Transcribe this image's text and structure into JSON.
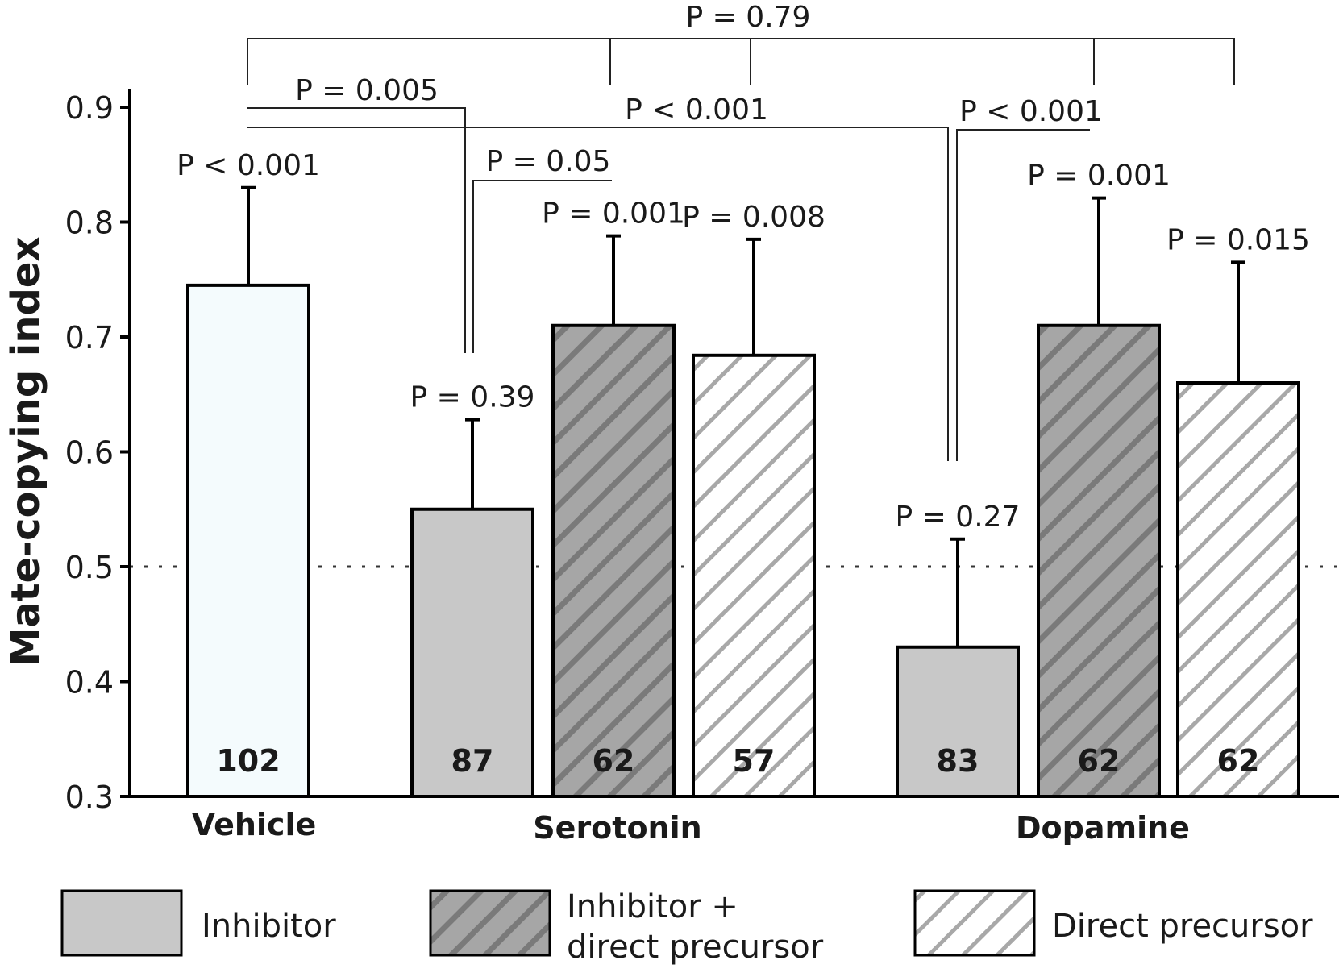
{
  "chart_data": {
    "type": "bar",
    "ylabel": "Mate-copying index",
    "ylim": [
      0.3,
      0.9
    ],
    "yticks": [
      "0.3",
      "0.4",
      "0.5",
      "0.6",
      "0.7",
      "0.8",
      "0.9"
    ],
    "reference_line": 0.5,
    "groups": [
      "Vehicle",
      "Serotonin",
      "Dopamine"
    ],
    "bars": [
      {
        "group": "Vehicle",
        "treatment": "Vehicle",
        "value": 0.745,
        "error": 0.085,
        "n": "102",
        "p": "P < 0.001",
        "color": "#f4fbfd",
        "pattern": "none"
      },
      {
        "group": "Serotonin",
        "treatment": "Inhibitor",
        "value": 0.55,
        "error": 0.078,
        "n": "87",
        "p": "P = 0.39",
        "color": "#c8c8c8",
        "pattern": "none"
      },
      {
        "group": "Serotonin",
        "treatment": "Inhibitor + direct precursor",
        "value": 0.71,
        "error": 0.078,
        "n": "62",
        "p": "P = 0.001",
        "color": "#a6a6a6",
        "pattern": "dark-hatch"
      },
      {
        "group": "Serotonin",
        "treatment": "Direct precursor",
        "value": 0.684,
        "error": 0.101,
        "n": "57",
        "p": "P = 0.008",
        "color": "#ffffff",
        "pattern": "light-hatch"
      },
      {
        "group": "Dopamine",
        "treatment": "Inhibitor",
        "value": 0.43,
        "error": 0.094,
        "n": "83",
        "p": "P = 0.27",
        "color": "#c8c8c8",
        "pattern": "none"
      },
      {
        "group": "Dopamine",
        "treatment": "Inhibitor + direct precursor",
        "value": 0.71,
        "error": 0.111,
        "n": "62",
        "p": "P = 0.001",
        "color": "#a6a6a6",
        "pattern": "dark-hatch"
      },
      {
        "group": "Dopamine",
        "treatment": "Direct precursor",
        "value": 0.66,
        "error": 0.105,
        "n": "62",
        "p": "P = 0.015",
        "color": "#ffffff",
        "pattern": "light-hatch"
      }
    ],
    "comparisons": [
      {
        "label": "P = 0.79",
        "between": [
          "Vehicle",
          "Serotonin",
          "Dopamine"
        ]
      },
      {
        "label": "P = 0.005",
        "between": [
          "Vehicle",
          "Serotonin Inhibitor"
        ]
      },
      {
        "label": "P < 0.001",
        "between": [
          "Vehicle",
          "Dopamine Inhibitor"
        ]
      },
      {
        "label": "P = 0.05",
        "between": [
          "Serotonin Inhibitor",
          "Serotonin Inhibitor + direct precursor"
        ]
      },
      {
        "label": "P < 0.001",
        "between": [
          "Dopamine Inhibitor",
          "Dopamine Inhibitor + direct precursor"
        ]
      }
    ],
    "legend": [
      {
        "label": "Inhibitor",
        "color": "#c8c8c8",
        "pattern": "none"
      },
      {
        "label": "Inhibitor +\ndirect precursor",
        "color": "#a6a6a6",
        "pattern": "dark-hatch"
      },
      {
        "label": "Direct precursor",
        "color": "#ffffff",
        "pattern": "light-hatch"
      }
    ],
    "legend_position": "bottom"
  }
}
